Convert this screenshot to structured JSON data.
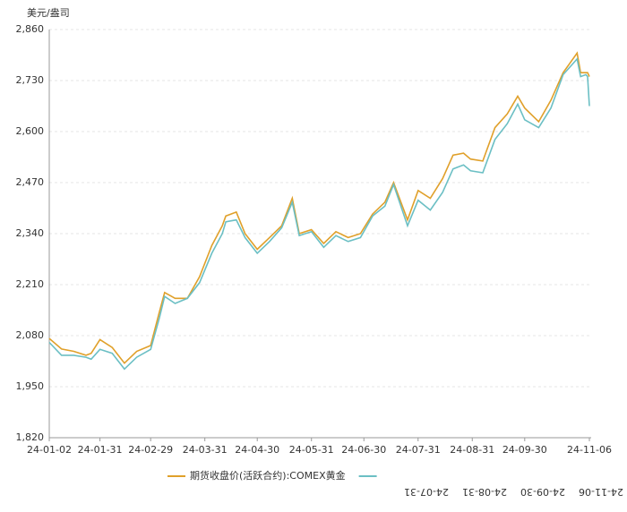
{
  "chart_data": {
    "type": "line",
    "ylabel": "美元/盎司",
    "x": [
      "24-01-02",
      "24-01-09",
      "24-01-16",
      "24-01-23",
      "24-01-26",
      "24-01-31",
      "24-02-07",
      "24-02-14",
      "24-02-21",
      "24-02-29",
      "24-03-05",
      "24-03-08",
      "24-03-14",
      "24-03-21",
      "24-03-28",
      "24-04-04",
      "24-04-10",
      "24-04-12",
      "24-04-18",
      "24-04-23",
      "24-04-30",
      "24-05-07",
      "24-05-14",
      "24-05-20",
      "24-05-24",
      "24-05-31",
      "24-06-07",
      "24-06-14",
      "24-06-21",
      "24-06-28",
      "24-07-05",
      "24-07-12",
      "24-07-17",
      "24-07-25",
      "24-07-31",
      "24-08-07",
      "24-08-14",
      "24-08-20",
      "24-08-26",
      "24-08-30",
      "24-09-06",
      "24-09-13",
      "24-09-20",
      "24-09-26",
      "24-09-30",
      "24-10-08",
      "24-10-15",
      "24-10-22",
      "24-10-30",
      "24-11-01",
      "24-11-04",
      "24-11-05",
      "24-11-06"
    ],
    "series": [
      {
        "name": "期货收盘价(活跃合约):COMEX黄金",
        "color": "#e0a02a",
        "values": [
          2073,
          2046,
          2040,
          2030,
          2035,
          2070,
          2050,
          2010,
          2040,
          2055,
          2140,
          2190,
          2175,
          2175,
          2230,
          2310,
          2360,
          2385,
          2395,
          2340,
          2300,
          2330,
          2360,
          2430,
          2340,
          2350,
          2315,
          2345,
          2330,
          2340,
          2390,
          2420,
          2470,
          2375,
          2450,
          2430,
          2480,
          2540,
          2545,
          2530,
          2525,
          2610,
          2645,
          2690,
          2660,
          2625,
          2680,
          2750,
          2800,
          2750,
          2750,
          2750,
          2740
        ]
      },
      {
        "color": "#6bbfc4",
        "values": [
          2063,
          2030,
          2030,
          2025,
          2020,
          2045,
          2035,
          1995,
          2025,
          2045,
          2125,
          2180,
          2162,
          2175,
          2215,
          2290,
          2340,
          2370,
          2375,
          2330,
          2290,
          2320,
          2355,
          2420,
          2335,
          2345,
          2305,
          2335,
          2320,
          2330,
          2385,
          2410,
          2465,
          2360,
          2425,
          2400,
          2445,
          2505,
          2515,
          2500,
          2495,
          2580,
          2620,
          2670,
          2630,
          2610,
          2660,
          2745,
          2785,
          2740,
          2745,
          2740,
          2665
        ]
      }
    ],
    "xticks": [
      "24-01-02",
      "24-01-31",
      "24-02-29",
      "24-03-31",
      "24-04-30",
      "24-05-31",
      "24-06-30",
      "24-07-31",
      "24-08-31",
      "24-09-30",
      "24-11-06"
    ],
    "ylim": [
      1820,
      2860
    ],
    "yticks": [
      {
        "value": 1820,
        "label": "1,820"
      },
      {
        "value": 1950,
        "label": "1,950"
      },
      {
        "value": 2080,
        "label": "2,080"
      },
      {
        "value": 2210,
        "label": "2,210"
      },
      {
        "value": 2340,
        "label": "2,340"
      },
      {
        "value": 2470,
        "label": "2,470"
      },
      {
        "value": 2600,
        "label": "2,600"
      },
      {
        "value": 2730,
        "label": "2,730"
      },
      {
        "value": 2860,
        "label": "2,860"
      }
    ],
    "grid": true
  }
}
